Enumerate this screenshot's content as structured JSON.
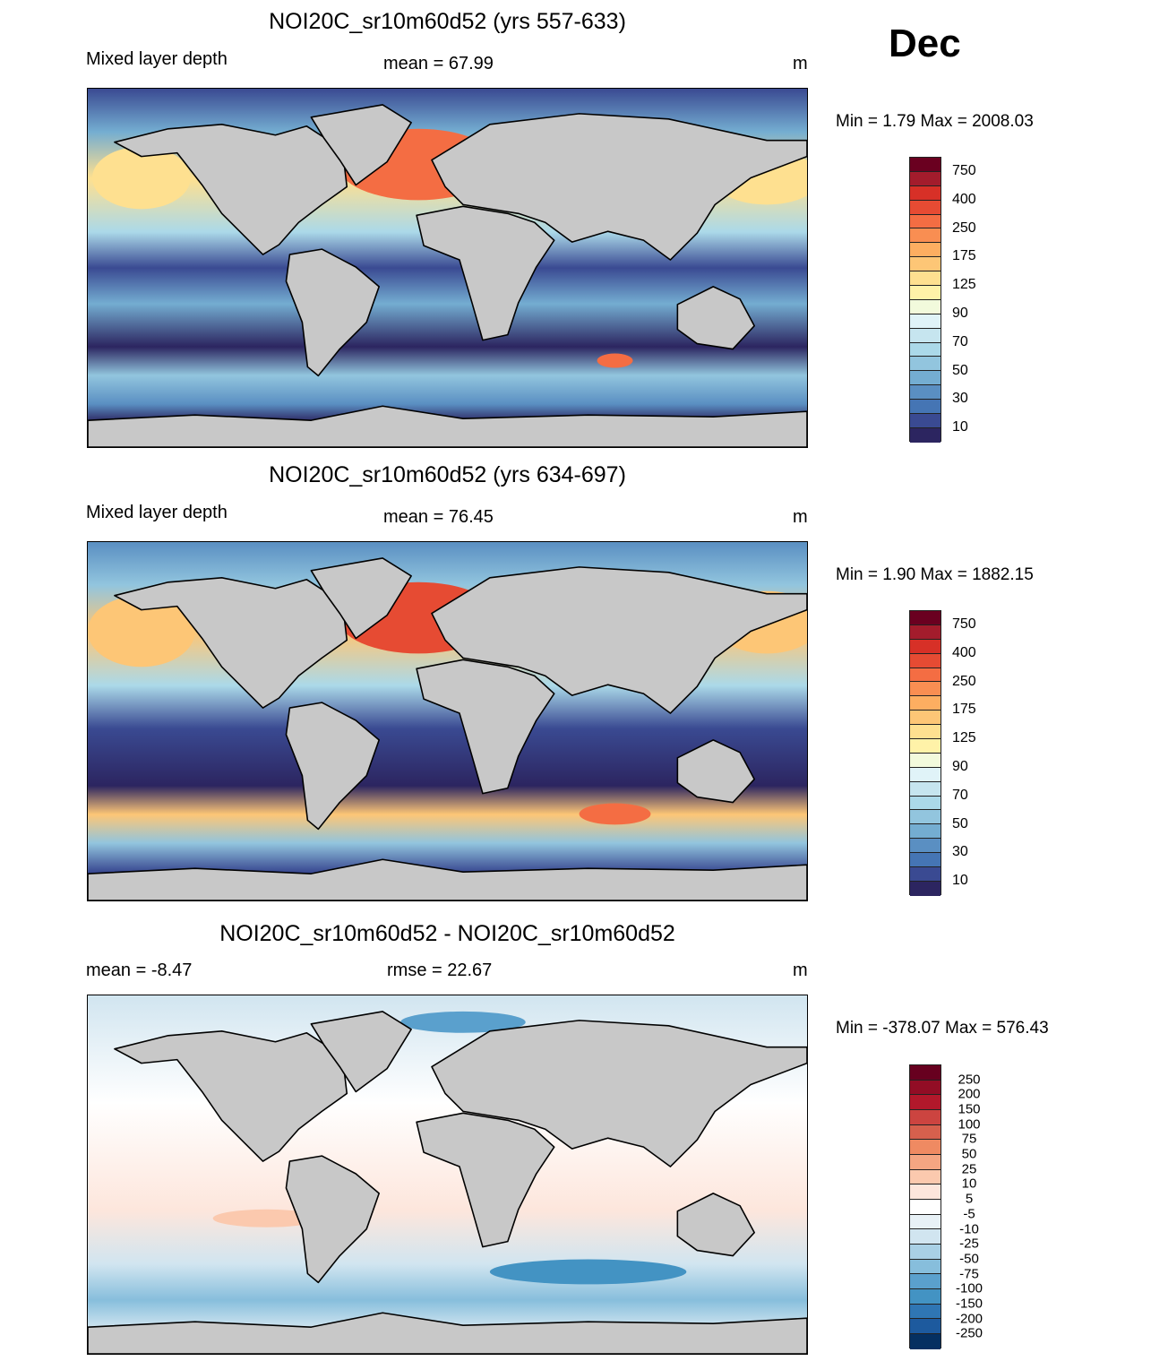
{
  "month": "Dec",
  "panels": [
    {
      "title": "NOI20C_sr10m60d52 (yrs 557-633)",
      "left_label": "Mixed layer depth",
      "center_label": "mean =  67.99",
      "units": "m",
      "minmax": "Min =    1.79 Max = 2008.03"
    },
    {
      "title": "NOI20C_sr10m60d52 (yrs 634-697)",
      "left_label": "Mixed layer depth",
      "center_label": "mean =  76.45",
      "units": "m",
      "minmax": "Min =    1.90 Max = 1882.15"
    },
    {
      "title": "NOI20C_sr10m60d52 - NOI20C_sr10m60d52",
      "left_label": "mean =  -8.47",
      "center_label": "rmse =  22.67",
      "units": "m",
      "minmax": "Min = -378.07 Max = 576.43"
    }
  ],
  "colorbars": {
    "mld": {
      "colors": [
        "#6a0020",
        "#a31c2c",
        "#d73027",
        "#e64b33",
        "#f46d43",
        "#f98e52",
        "#fdae61",
        "#fdc676",
        "#fee090",
        "#fff2a8",
        "#f2fadc",
        "#e0f3f8",
        "#c6e5ef",
        "#abd9e9",
        "#92c5de",
        "#74add1",
        "#5a8fc2",
        "#4575b4",
        "#3a4a92",
        "#2c2560"
      ],
      "labels": [
        "750",
        "400",
        "250",
        "175",
        "125",
        "90",
        "70",
        "50",
        "30",
        "10"
      ]
    },
    "diff": {
      "colors": [
        "#67001f",
        "#920d25",
        "#b2182b",
        "#cc4440",
        "#d6604d",
        "#ef8a62",
        "#f4a582",
        "#fbc9ae",
        "#fde6dc",
        "#ffffff",
        "#e8f1f6",
        "#d1e5f0",
        "#a9d0e5",
        "#87bedc",
        "#5aa0cd",
        "#4393c3",
        "#2f76b4",
        "#1d5a9e",
        "#053061"
      ],
      "labels": [
        "250",
        "200",
        "150",
        "100",
        "75",
        "50",
        "25",
        "10",
        "5",
        "-5",
        "-10",
        "-25",
        "-50",
        "-75",
        "-100",
        "-150",
        "-200",
        "-250"
      ]
    }
  }
}
